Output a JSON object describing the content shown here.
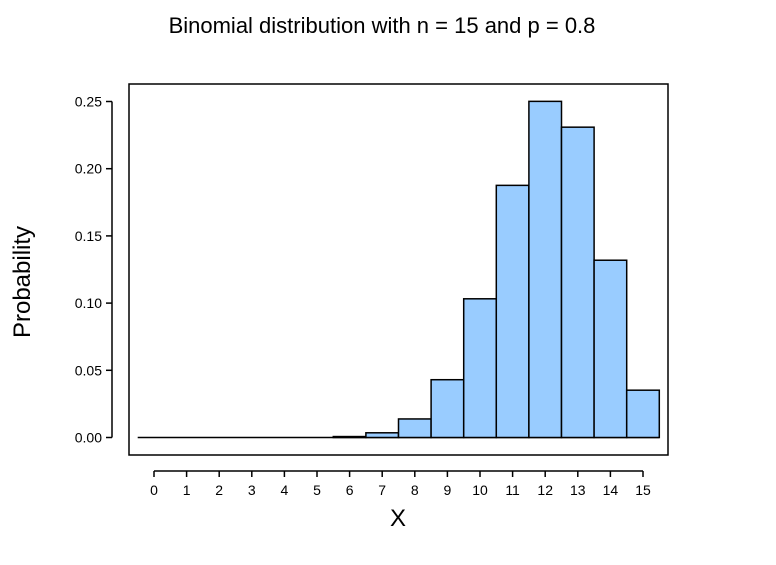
{
  "chart_data": {
    "type": "bar",
    "title": "Binomial distribution with n = 15 and p = 0.8",
    "xlabel": "X",
    "ylabel": "Probability",
    "categories": [
      "0",
      "1",
      "2",
      "3",
      "4",
      "5",
      "6",
      "7",
      "8",
      "9",
      "10",
      "11",
      "12",
      "13",
      "14",
      "15"
    ],
    "values": [
      0.0,
      0.0,
      0.0,
      0.0,
      0.0,
      0.0001,
      0.0007,
      0.0035,
      0.0138,
      0.043,
      0.1032,
      0.1876,
      0.2501,
      0.2309,
      0.1319,
      0.0352
    ],
    "ylim": [
      0,
      0.25
    ],
    "yticks": [
      "0.00",
      "0.05",
      "0.10",
      "0.15",
      "0.20",
      "0.25"
    ],
    "grid": false,
    "bar_color": "#99ccff",
    "edge_color": "#000000"
  }
}
